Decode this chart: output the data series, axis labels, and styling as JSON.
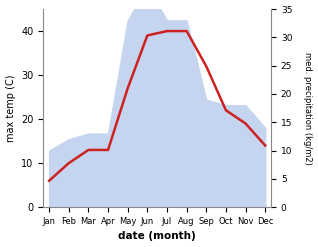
{
  "months": [
    "Jan",
    "Feb",
    "Mar",
    "Apr",
    "May",
    "Jun",
    "Jul",
    "Aug",
    "Sep",
    "Oct",
    "Nov",
    "Dec"
  ],
  "temperature": [
    6,
    10,
    13,
    13,
    27,
    39,
    40,
    40,
    32,
    22,
    19,
    14
  ],
  "precipitation": [
    10,
    12,
    13,
    13,
    33,
    39,
    33,
    33,
    19,
    18,
    18,
    14
  ],
  "temp_color": "#cc2222",
  "precip_fill_color": "#c5d5f0",
  "temp_ylim": [
    0,
    45
  ],
  "precip_ylim": [
    0,
    35
  ],
  "temp_yticks": [
    0,
    10,
    20,
    30,
    40
  ],
  "precip_yticks": [
    0,
    5,
    10,
    15,
    20,
    25,
    30,
    35
  ],
  "xlabel": "date (month)",
  "ylabel_left": "max temp (C)",
  "ylabel_right": "med. precipitation (kg/m2)"
}
